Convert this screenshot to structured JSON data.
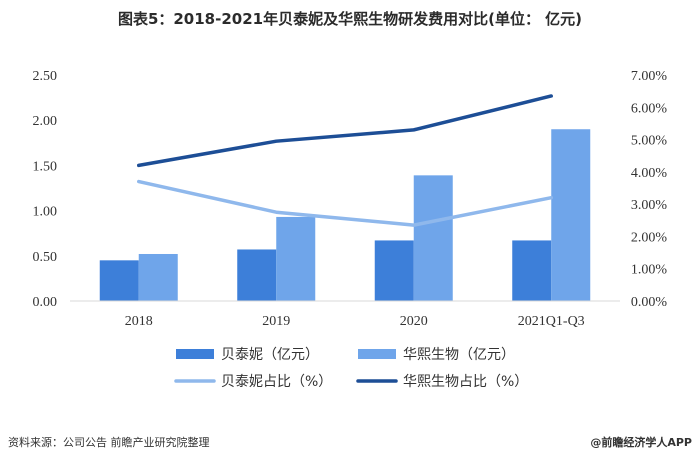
{
  "chart_data": {
    "type": "bar",
    "title": "图表5：2018-2021年贝泰妮及华熙生物研发费用对比(单位： 亿元)",
    "categories": [
      "2018",
      "2019",
      "2020",
      "2021Q1-Q3"
    ],
    "y_left": {
      "ylim": [
        0,
        2.5
      ],
      "ticks": [
        "0.00",
        "0.50",
        "1.00",
        "1.50",
        "2.00",
        "2.50"
      ]
    },
    "y_right": {
      "ylim": [
        0,
        7
      ],
      "ticks": [
        "0.00%",
        "1.00%",
        "2.00%",
        "3.00%",
        "4.00%",
        "5.00%",
        "6.00%",
        "7.00%"
      ]
    },
    "series": [
      {
        "name": "贝泰妮（亿元）",
        "kind": "bar",
        "axis": "left",
        "color": "#3d7fd9",
        "values": [
          0.45,
          0.57,
          0.67,
          0.67
        ]
      },
      {
        "name": "华熙生物（亿元）",
        "kind": "bar",
        "axis": "left",
        "color": "#6fa5ea",
        "values": [
          0.52,
          0.93,
          1.39,
          1.9
        ]
      },
      {
        "name": "贝泰妮占比（%）",
        "kind": "line",
        "axis": "right",
        "color": "#8fb8ec",
        "values": [
          3.7,
          2.75,
          2.35,
          3.2
        ]
      },
      {
        "name": "华熙生物占比（%）",
        "kind": "line",
        "axis": "right",
        "color": "#1d4e96",
        "values": [
          4.2,
          4.95,
          5.3,
          6.35
        ]
      }
    ],
    "grid": false,
    "legend_position": "bottom"
  },
  "footer": {
    "source_label": "资料来源：公司公告 前瞻产业研究院整理",
    "brand_label": "@前瞻经济学人APP"
  }
}
